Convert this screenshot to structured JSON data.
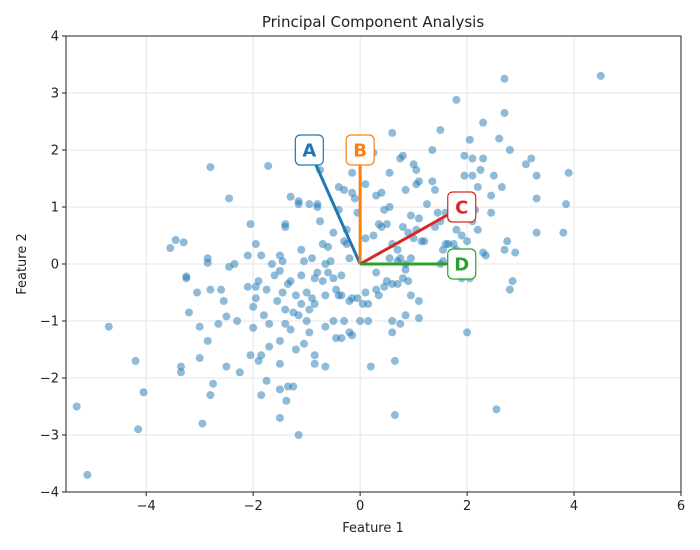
{
  "chart_data": {
    "type": "scatter",
    "title": "Principal Component Analysis",
    "xlabel": "Feature 1",
    "ylabel": "Feature 2",
    "xlim": [
      -5.5,
      6
    ],
    "ylim": [
      -4,
      4
    ],
    "xticks": [
      "−4",
      "−2",
      "0",
      "2",
      "4",
      "6"
    ],
    "xtick_values": [
      -4,
      -2,
      0,
      2,
      4,
      6
    ],
    "yticks": [
      "−4",
      "−3",
      "−2",
      "−1",
      "0",
      "1",
      "2",
      "3",
      "4"
    ],
    "ytick_values": [
      -4,
      -3,
      -2,
      -1,
      0,
      1,
      2,
      3,
      4
    ],
    "grid": true,
    "point_color": "#1f77b4",
    "points": [
      [
        -5.1,
        -3.7
      ],
      [
        -5.3,
        -2.5
      ],
      [
        -4.7,
        -1.1
      ],
      [
        -4.2,
        -1.7
      ],
      [
        -4.15,
        -2.9
      ],
      [
        -4.05,
        -2.25
      ],
      [
        -3.55,
        0.28
      ],
      [
        -3.45,
        0.42
      ],
      [
        -3.3,
        0.38
      ],
      [
        -3.25,
        -0.22
      ],
      [
        -3.25,
        -0.25
      ],
      [
        -3.35,
        -1.8
      ],
      [
        -3.35,
        -1.9
      ],
      [
        -3.2,
        -0.85
      ],
      [
        -3.05,
        -0.5
      ],
      [
        -3.0,
        -1.1
      ],
      [
        -3.0,
        -1.65
      ],
      [
        -2.95,
        -2.8
      ],
      [
        -2.85,
        0.02
      ],
      [
        -2.85,
        0.1
      ],
      [
        -2.85,
        -1.35
      ],
      [
        -2.8,
        1.7
      ],
      [
        -2.8,
        -0.45
      ],
      [
        -2.8,
        -2.3
      ],
      [
        -2.75,
        -2.1
      ],
      [
        -2.65,
        -1.05
      ],
      [
        -2.6,
        -0.45
      ],
      [
        -2.55,
        -0.65
      ],
      [
        -2.5,
        -0.92
      ],
      [
        -2.5,
        -1.8
      ],
      [
        -2.45,
        1.15
      ],
      [
        -2.45,
        -0.05
      ],
      [
        -2.35,
        0.0
      ],
      [
        -2.3,
        -1.0
      ],
      [
        -2.25,
        -1.9
      ],
      [
        -2.1,
        -0.4
      ],
      [
        -2.1,
        0.15
      ],
      [
        -2.05,
        0.7
      ],
      [
        -2.05,
        -1.6
      ],
      [
        -2.0,
        -1.12
      ],
      [
        -2.0,
        -0.75
      ],
      [
        -1.95,
        0.35
      ],
      [
        -1.95,
        -0.6
      ],
      [
        -1.95,
        -0.4
      ],
      [
        -1.9,
        -0.3
      ],
      [
        -1.9,
        -1.7
      ],
      [
        -1.85,
        -1.6
      ],
      [
        -1.85,
        -2.3
      ],
      [
        -1.85,
        0.15
      ],
      [
        -1.8,
        -0.9
      ],
      [
        -1.75,
        -2.05
      ],
      [
        -1.75,
        -0.45
      ],
      [
        -1.72,
        1.72
      ],
      [
        -1.7,
        -1.05
      ],
      [
        -1.7,
        -1.45
      ],
      [
        -1.65,
        0.0
      ],
      [
        -1.6,
        -0.2
      ],
      [
        -1.55,
        -0.65
      ],
      [
        -1.5,
        0.15
      ],
      [
        -1.5,
        -0.12
      ],
      [
        -1.5,
        -1.35
      ],
      [
        -1.5,
        -1.75
      ],
      [
        -1.5,
        -2.2
      ],
      [
        -1.5,
        -2.7
      ],
      [
        -1.45,
        0.05
      ],
      [
        -1.45,
        -0.5
      ],
      [
        -1.4,
        0.7
      ],
      [
        -1.4,
        0.65
      ],
      [
        -1.4,
        -0.8
      ],
      [
        -1.4,
        -1.05
      ],
      [
        -1.38,
        -2.4
      ],
      [
        -1.35,
        -2.15
      ],
      [
        -1.35,
        -0.35
      ],
      [
        -1.3,
        1.18
      ],
      [
        -1.3,
        -0.3
      ],
      [
        -1.3,
        -1.15
      ],
      [
        -1.25,
        -0.85
      ],
      [
        -1.25,
        -2.15
      ],
      [
        -1.2,
        -1.5
      ],
      [
        -1.2,
        -0.55
      ],
      [
        -1.15,
        1.05
      ],
      [
        -1.15,
        1.1
      ],
      [
        -1.15,
        -0.9
      ],
      [
        -1.15,
        -3.0
      ],
      [
        -1.1,
        0.25
      ],
      [
        -1.1,
        -0.2
      ],
      [
        -1.1,
        -0.7
      ],
      [
        -1.05,
        0.05
      ],
      [
        -1.05,
        -1.4
      ],
      [
        -1.0,
        -0.5
      ],
      [
        -1.0,
        -1.0
      ],
      [
        -0.95,
        1.05
      ],
      [
        -0.95,
        -0.8
      ],
      [
        -0.95,
        -1.2
      ],
      [
        -0.9,
        0.1
      ],
      [
        -0.9,
        -0.6
      ],
      [
        -0.85,
        -0.25
      ],
      [
        -0.85,
        -0.7
      ],
      [
        -0.85,
        -1.6
      ],
      [
        -0.85,
        -1.75
      ],
      [
        -0.8,
        1.0
      ],
      [
        -0.8,
        1.05
      ],
      [
        -0.8,
        -0.15
      ],
      [
        -0.75,
        0.75
      ],
      [
        -0.75,
        1.65
      ],
      [
        -0.75,
        1.98
      ],
      [
        -0.7,
        -0.3
      ],
      [
        -0.7,
        0.35
      ],
      [
        -0.65,
        0.0
      ],
      [
        -0.65,
        -0.55
      ],
      [
        -0.65,
        -1.1
      ],
      [
        -0.65,
        -1.8
      ],
      [
        -0.6,
        0.3
      ],
      [
        -0.6,
        -0.15
      ],
      [
        -0.55,
        0.05
      ],
      [
        -0.5,
        0.55
      ],
      [
        -0.5,
        -0.25
      ],
      [
        -0.5,
        -1.0
      ],
      [
        -0.45,
        -0.45
      ],
      [
        -0.45,
        -1.3
      ],
      [
        -0.4,
        1.35
      ],
      [
        -0.4,
        0.95
      ],
      [
        -0.4,
        -0.55
      ],
      [
        -0.35,
        -0.55
      ],
      [
        -0.35,
        -0.2
      ],
      [
        -0.35,
        -1.3
      ],
      [
        -0.3,
        0.4
      ],
      [
        -0.3,
        1.3
      ],
      [
        -0.3,
        -1.0
      ],
      [
        -0.25,
        0.6
      ],
      [
        -0.25,
        0.35
      ],
      [
        -0.2,
        0.1
      ],
      [
        -0.2,
        -0.65
      ],
      [
        -0.2,
        -1.2
      ],
      [
        -0.15,
        1.6
      ],
      [
        -0.15,
        1.25
      ],
      [
        -0.15,
        -0.6
      ],
      [
        -0.15,
        -1.25
      ],
      [
        -0.1,
        1.15
      ],
      [
        -0.05,
        0.9
      ],
      [
        -0.05,
        -0.6
      ],
      [
        0.0,
        -1.0
      ],
      [
        0.05,
        -0.7
      ],
      [
        0.1,
        1.4
      ],
      [
        0.1,
        0.45
      ],
      [
        0.1,
        -0.5
      ],
      [
        0.15,
        -0.7
      ],
      [
        0.15,
        -1.0
      ],
      [
        0.2,
        -1.8
      ],
      [
        0.25,
        1.95
      ],
      [
        0.25,
        0.5
      ],
      [
        0.3,
        1.2
      ],
      [
        0.3,
        -0.15
      ],
      [
        0.3,
        -0.45
      ],
      [
        0.35,
        0.7
      ],
      [
        0.35,
        -0.55
      ],
      [
        0.4,
        1.25
      ],
      [
        0.4,
        0.65
      ],
      [
        0.45,
        -0.4
      ],
      [
        0.45,
        0.95
      ],
      [
        0.5,
        0.7
      ],
      [
        0.5,
        -0.3
      ],
      [
        0.55,
        1.6
      ],
      [
        0.55,
        1.0
      ],
      [
        0.55,
        0.1
      ],
      [
        0.6,
        2.3
      ],
      [
        0.6,
        0.35
      ],
      [
        0.6,
        -0.35
      ],
      [
        0.6,
        -1.0
      ],
      [
        0.6,
        -1.2
      ],
      [
        0.65,
        -2.65
      ],
      [
        0.65,
        -1.7
      ],
      [
        0.7,
        0.05
      ],
      [
        0.7,
        0.25
      ],
      [
        0.7,
        -0.35
      ],
      [
        0.75,
        1.85
      ],
      [
        0.75,
        0.1
      ],
      [
        0.75,
        -1.05
      ],
      [
        0.8,
        1.9
      ],
      [
        0.8,
        0.65
      ],
      [
        0.8,
        -0.25
      ],
      [
        0.85,
        1.3
      ],
      [
        0.85,
        0.0
      ],
      [
        0.85,
        -0.1
      ],
      [
        0.85,
        -0.9
      ],
      [
        0.9,
        0.55
      ],
      [
        0.9,
        -0.3
      ],
      [
        0.95,
        0.85
      ],
      [
        0.95,
        0.1
      ],
      [
        0.95,
        -0.55
      ],
      [
        1.0,
        1.75
      ],
      [
        1.0,
        0.45
      ],
      [
        1.05,
        1.4
      ],
      [
        1.05,
        1.65
      ],
      [
        1.05,
        0.6
      ],
      [
        1.1,
        1.45
      ],
      [
        1.1,
        0.8
      ],
      [
        1.1,
        -0.65
      ],
      [
        1.1,
        -0.95
      ],
      [
        1.15,
        0.4
      ],
      [
        1.2,
        0.4
      ],
      [
        1.25,
        1.05
      ],
      [
        1.35,
        1.45
      ],
      [
        1.35,
        2.0
      ],
      [
        1.4,
        0.65
      ],
      [
        1.4,
        1.3
      ],
      [
        1.45,
        0.9
      ],
      [
        1.5,
        2.35
      ],
      [
        1.5,
        0.75
      ],
      [
        1.5,
        0.0
      ],
      [
        1.55,
        0.25
      ],
      [
        1.55,
        0.05
      ],
      [
        1.6,
        0.9
      ],
      [
        1.6,
        0.35
      ],
      [
        1.65,
        0.35
      ],
      [
        1.7,
        0.8
      ],
      [
        1.75,
        1.1
      ],
      [
        1.75,
        0.35
      ],
      [
        1.8,
        2.88
      ],
      [
        1.8,
        0.6
      ],
      [
        1.8,
        0.25
      ],
      [
        1.85,
        1.0
      ],
      [
        1.85,
        0.15
      ],
      [
        1.9,
        0.95
      ],
      [
        1.9,
        0.5
      ],
      [
        1.9,
        -0.25
      ],
      [
        1.95,
        1.55
      ],
      [
        1.95,
        1.9
      ],
      [
        2.0,
        0.4
      ],
      [
        2.0,
        -1.2
      ],
      [
        2.05,
        2.18
      ],
      [
        2.05,
        1.05
      ],
      [
        2.05,
        -0.25
      ],
      [
        2.1,
        1.85
      ],
      [
        2.1,
        1.55
      ],
      [
        2.1,
        0.75
      ],
      [
        2.15,
        0.95
      ],
      [
        2.2,
        1.35
      ],
      [
        2.2,
        0.6
      ],
      [
        2.25,
        1.65
      ],
      [
        2.3,
        2.48
      ],
      [
        2.3,
        1.85
      ],
      [
        2.3,
        0.2
      ],
      [
        2.35,
        0.15
      ],
      [
        2.45,
        0.9
      ],
      [
        2.45,
        1.2
      ],
      [
        2.5,
        1.55
      ],
      [
        2.55,
        -2.55
      ],
      [
        2.6,
        2.2
      ],
      [
        2.65,
        1.35
      ],
      [
        2.7,
        2.65
      ],
      [
        2.7,
        0.25
      ],
      [
        2.7,
        3.25
      ],
      [
        2.75,
        0.4
      ],
      [
        2.8,
        2.0
      ],
      [
        2.8,
        -0.45
      ],
      [
        2.85,
        -0.3
      ],
      [
        2.9,
        0.2
      ],
      [
        3.1,
        1.75
      ],
      [
        3.2,
        1.85
      ],
      [
        3.3,
        1.55
      ],
      [
        3.3,
        1.15
      ],
      [
        3.3,
        0.55
      ],
      [
        3.8,
        0.55
      ],
      [
        3.85,
        1.05
      ],
      [
        3.9,
        1.6
      ],
      [
        4.5,
        3.3
      ]
    ],
    "vectors": [
      {
        "label": "A",
        "x": -0.95,
        "y": 2.0,
        "color": "#1f77b4"
      },
      {
        "label": "B",
        "x": 0.0,
        "y": 2.0,
        "color": "#ff7f0e"
      },
      {
        "label": "C",
        "x": 1.9,
        "y": 1.0,
        "color": "#d62728"
      },
      {
        "label": "D",
        "x": 1.9,
        "y": 0.0,
        "color": "#2ca02c"
      }
    ]
  }
}
